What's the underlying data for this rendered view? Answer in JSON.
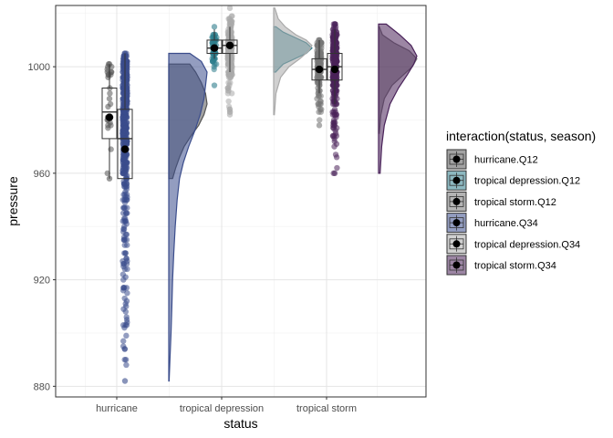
{
  "chart_data": {
    "type": "raincloud",
    "xlabel": "status",
    "ylabel": "pressure",
    "categories": [
      "hurricane",
      "tropical depression",
      "tropical storm"
    ],
    "y_ticks": [
      880,
      920,
      960,
      1000
    ],
    "ylim": [
      876,
      1023
    ],
    "grid": true,
    "legend_title": "interaction(status, season)",
    "legend_position": "right",
    "series": [
      {
        "name": "hurricane.Q12",
        "category": "hurricane",
        "season": "Q12",
        "color": "#555555",
        "point_range": [
          958,
          1001
        ],
        "box": {
          "min": 958,
          "q1": 973,
          "median": 983,
          "q3": 992,
          "max": 1001
        },
        "mean": 981,
        "density": [
          [
            958,
            0.1
          ],
          [
            962,
            0.18
          ],
          [
            966,
            0.28
          ],
          [
            970,
            0.4
          ],
          [
            974,
            0.58
          ],
          [
            978,
            0.78
          ],
          [
            982,
            0.92
          ],
          [
            986,
            1.0
          ],
          [
            990,
            0.96
          ],
          [
            994,
            0.85
          ],
          [
            998,
            0.7
          ],
          [
            1001,
            0.55
          ]
        ]
      },
      {
        "name": "tropical depression.Q12",
        "category": "tropical depression",
        "season": "Q12",
        "color": "#2e7d8c",
        "point_range": [
          993,
          1015
        ],
        "box": {
          "min": 1003,
          "q1": 1005,
          "median": 1007,
          "q3": 1010,
          "max": 1014
        },
        "mean": 1007,
        "density": [
          [
            998,
            0.05
          ],
          [
            1001,
            0.25
          ],
          [
            1003,
            0.55
          ],
          [
            1005,
            0.85
          ],
          [
            1007,
            1.0
          ],
          [
            1009,
            0.85
          ],
          [
            1011,
            0.55
          ],
          [
            1013,
            0.25
          ],
          [
            1015,
            0.06
          ]
        ]
      },
      {
        "name": "tropical storm.Q12",
        "category": "tropical storm",
        "season": "Q12",
        "color": "#777777",
        "point_range": [
          978,
          1010
        ],
        "box": {
          "min": 990,
          "q1": 995,
          "median": 999,
          "q3": 1003,
          "max": 1010
        },
        "mean": 999,
        "density": [
          [
            975,
            0.02
          ],
          [
            982,
            0.06
          ],
          [
            988,
            0.15
          ],
          [
            993,
            0.35
          ],
          [
            997,
            0.65
          ],
          [
            1000,
            0.88
          ],
          [
            1003,
            1.0
          ],
          [
            1006,
            0.8
          ],
          [
            1009,
            0.4
          ],
          [
            1012,
            0.1
          ],
          [
            1015,
            0.02
          ]
        ]
      },
      {
        "name": "hurricane.Q34",
        "category": "hurricane",
        "season": "Q34",
        "color": "#3b4d8c",
        "point_range": [
          882,
          1005
        ],
        "box": {
          "min": 958,
          "q1": 958,
          "median": 973,
          "q3": 984,
          "max": 1005
        },
        "mean": 969,
        "density": [
          [
            882,
            0.01
          ],
          [
            890,
            0.03
          ],
          [
            900,
            0.06
          ],
          [
            910,
            0.08
          ],
          [
            920,
            0.1
          ],
          [
            930,
            0.13
          ],
          [
            940,
            0.17
          ],
          [
            950,
            0.22
          ],
          [
            958,
            0.28
          ],
          [
            964,
            0.38
          ],
          [
            970,
            0.52
          ],
          [
            976,
            0.68
          ],
          [
            982,
            0.82
          ],
          [
            988,
            0.92
          ],
          [
            994,
            0.97
          ],
          [
            998,
            1.0
          ],
          [
            1002,
            0.85
          ],
          [
            1005,
            0.55
          ]
        ]
      },
      {
        "name": "tropical depression.Q34",
        "category": "tropical depression",
        "season": "Q34",
        "color": "#aaaaaa",
        "point_range": [
          982,
          1022
        ],
        "box": {
          "min": 998,
          "q1": 1005,
          "median": 1008,
          "q3": 1010,
          "max": 1015
        },
        "mean": 1008,
        "density": [
          [
            982,
            0.02
          ],
          [
            990,
            0.06
          ],
          [
            996,
            0.18
          ],
          [
            1000,
            0.4
          ],
          [
            1003,
            0.68
          ],
          [
            1006,
            0.92
          ],
          [
            1008,
            1.0
          ],
          [
            1010,
            0.85
          ],
          [
            1012,
            0.58
          ],
          [
            1015,
            0.3
          ],
          [
            1018,
            0.12
          ],
          [
            1022,
            0.03
          ]
        ]
      },
      {
        "name": "tropical storm.Q34",
        "category": "tropical storm",
        "season": "Q34",
        "color": "#4a235a",
        "point_range": [
          960,
          1016
        ],
        "box": {
          "min": 986,
          "q1": 995,
          "median": 1000,
          "q3": 1005,
          "max": 1014
        },
        "mean": 999,
        "density": [
          [
            960,
            0.04
          ],
          [
            970,
            0.08
          ],
          [
            978,
            0.15
          ],
          [
            986,
            0.3
          ],
          [
            992,
            0.52
          ],
          [
            997,
            0.75
          ],
          [
            1001,
            0.92
          ],
          [
            1004,
            1.0
          ],
          [
            1008,
            0.85
          ],
          [
            1012,
            0.55
          ],
          [
            1016,
            0.2
          ]
        ]
      }
    ]
  }
}
